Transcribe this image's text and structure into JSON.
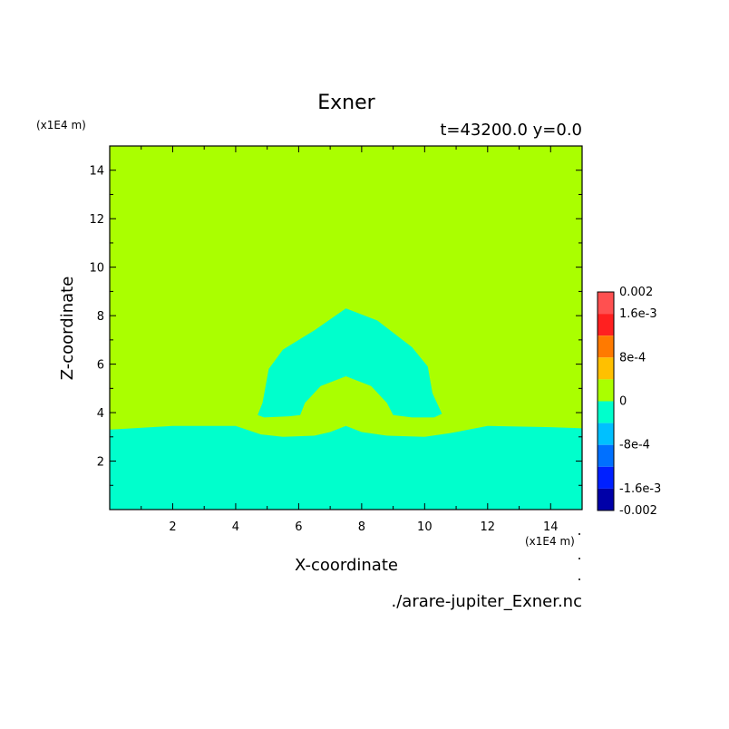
{
  "chart_data": {
    "type": "heatmap",
    "title": "Exner",
    "subtitle": "t=43200.0 y=0.0",
    "xlabel": "X-coordinate",
    "ylabel": "Z-coordinate",
    "x_unit": "(x1E4 m)",
    "y_unit": "(x1E4 m)",
    "xlim": [
      0.0,
      15.0
    ],
    "ylim": [
      0.0,
      15.0
    ],
    "xticks": [
      2,
      4,
      6,
      8,
      10,
      12,
      14
    ],
    "yticks": [
      2,
      4,
      6,
      8,
      10,
      12,
      14
    ],
    "source_file": "./arare-jupiter_Exner.nc",
    "regions": [
      {
        "level": "0 to 4e-4",
        "color": "#aaff00",
        "description": "background field"
      },
      {
        "level": "-4e-4 to 0",
        "color": "#00ffcc",
        "x": [
          0.0,
          2.0,
          4.0,
          4.8,
          5.5,
          6.5,
          7.0,
          7.5,
          8.0,
          8.8,
          10.0,
          10.8,
          12.0,
          14.0,
          15.0
        ],
        "z": [
          3.3,
          3.45,
          3.45,
          3.1,
          3.0,
          3.05,
          3.2,
          3.45,
          3.2,
          3.05,
          3.0,
          3.15,
          3.45,
          3.4,
          3.35
        ]
      },
      {
        "level": "-4e-4 to 0",
        "color": "#00ffcc",
        "x": [
          4.7,
          4.85,
          5.05,
          5.5,
          6.5,
          7.5,
          8.5,
          9.6,
          10.1,
          10.25,
          10.55,
          10.3,
          9.6,
          9.0,
          8.8,
          8.3,
          7.5,
          6.7,
          6.2,
          6.05,
          5.7,
          4.9
        ],
        "z": [
          3.9,
          4.4,
          5.8,
          6.6,
          7.4,
          8.3,
          7.8,
          6.7,
          5.9,
          4.8,
          3.95,
          3.8,
          3.8,
          3.9,
          4.4,
          5.1,
          5.5,
          5.1,
          4.4,
          3.9,
          3.85,
          3.8
        ]
      }
    ],
    "colorbar": {
      "tick_labels": [
        "0.002",
        "1.6e-3",
        "8e-4",
        "0",
        "-8e-4",
        "-1.6e-3",
        "-0.002"
      ],
      "tick_values": [
        0.002,
        0.0016,
        0.0008,
        0.0,
        -0.0008,
        -0.0016,
        -0.002
      ],
      "levels": [
        {
          "from": 0.0016,
          "to": 0.002,
          "color": "#ff5050"
        },
        {
          "from": 0.0012,
          "to": 0.0016,
          "color": "#ff2020"
        },
        {
          "from": 0.0008,
          "to": 0.0012,
          "color": "#ff7a00"
        },
        {
          "from": 0.0004,
          "to": 0.0008,
          "color": "#ffc000"
        },
        {
          "from": 0.0,
          "to": 0.0004,
          "color": "#aaff00"
        },
        {
          "from": -0.0004,
          "to": 0.0,
          "color": "#00ffcc"
        },
        {
          "from": -0.0008,
          "to": -0.0004,
          "color": "#00c0ff"
        },
        {
          "from": -0.0012,
          "to": -0.0008,
          "color": "#0070ff"
        },
        {
          "from": -0.0016,
          "to": -0.0012,
          "color": "#0020ff"
        },
        {
          "from": -0.002,
          "to": -0.0016,
          "color": "#0000a8"
        }
      ]
    }
  }
}
